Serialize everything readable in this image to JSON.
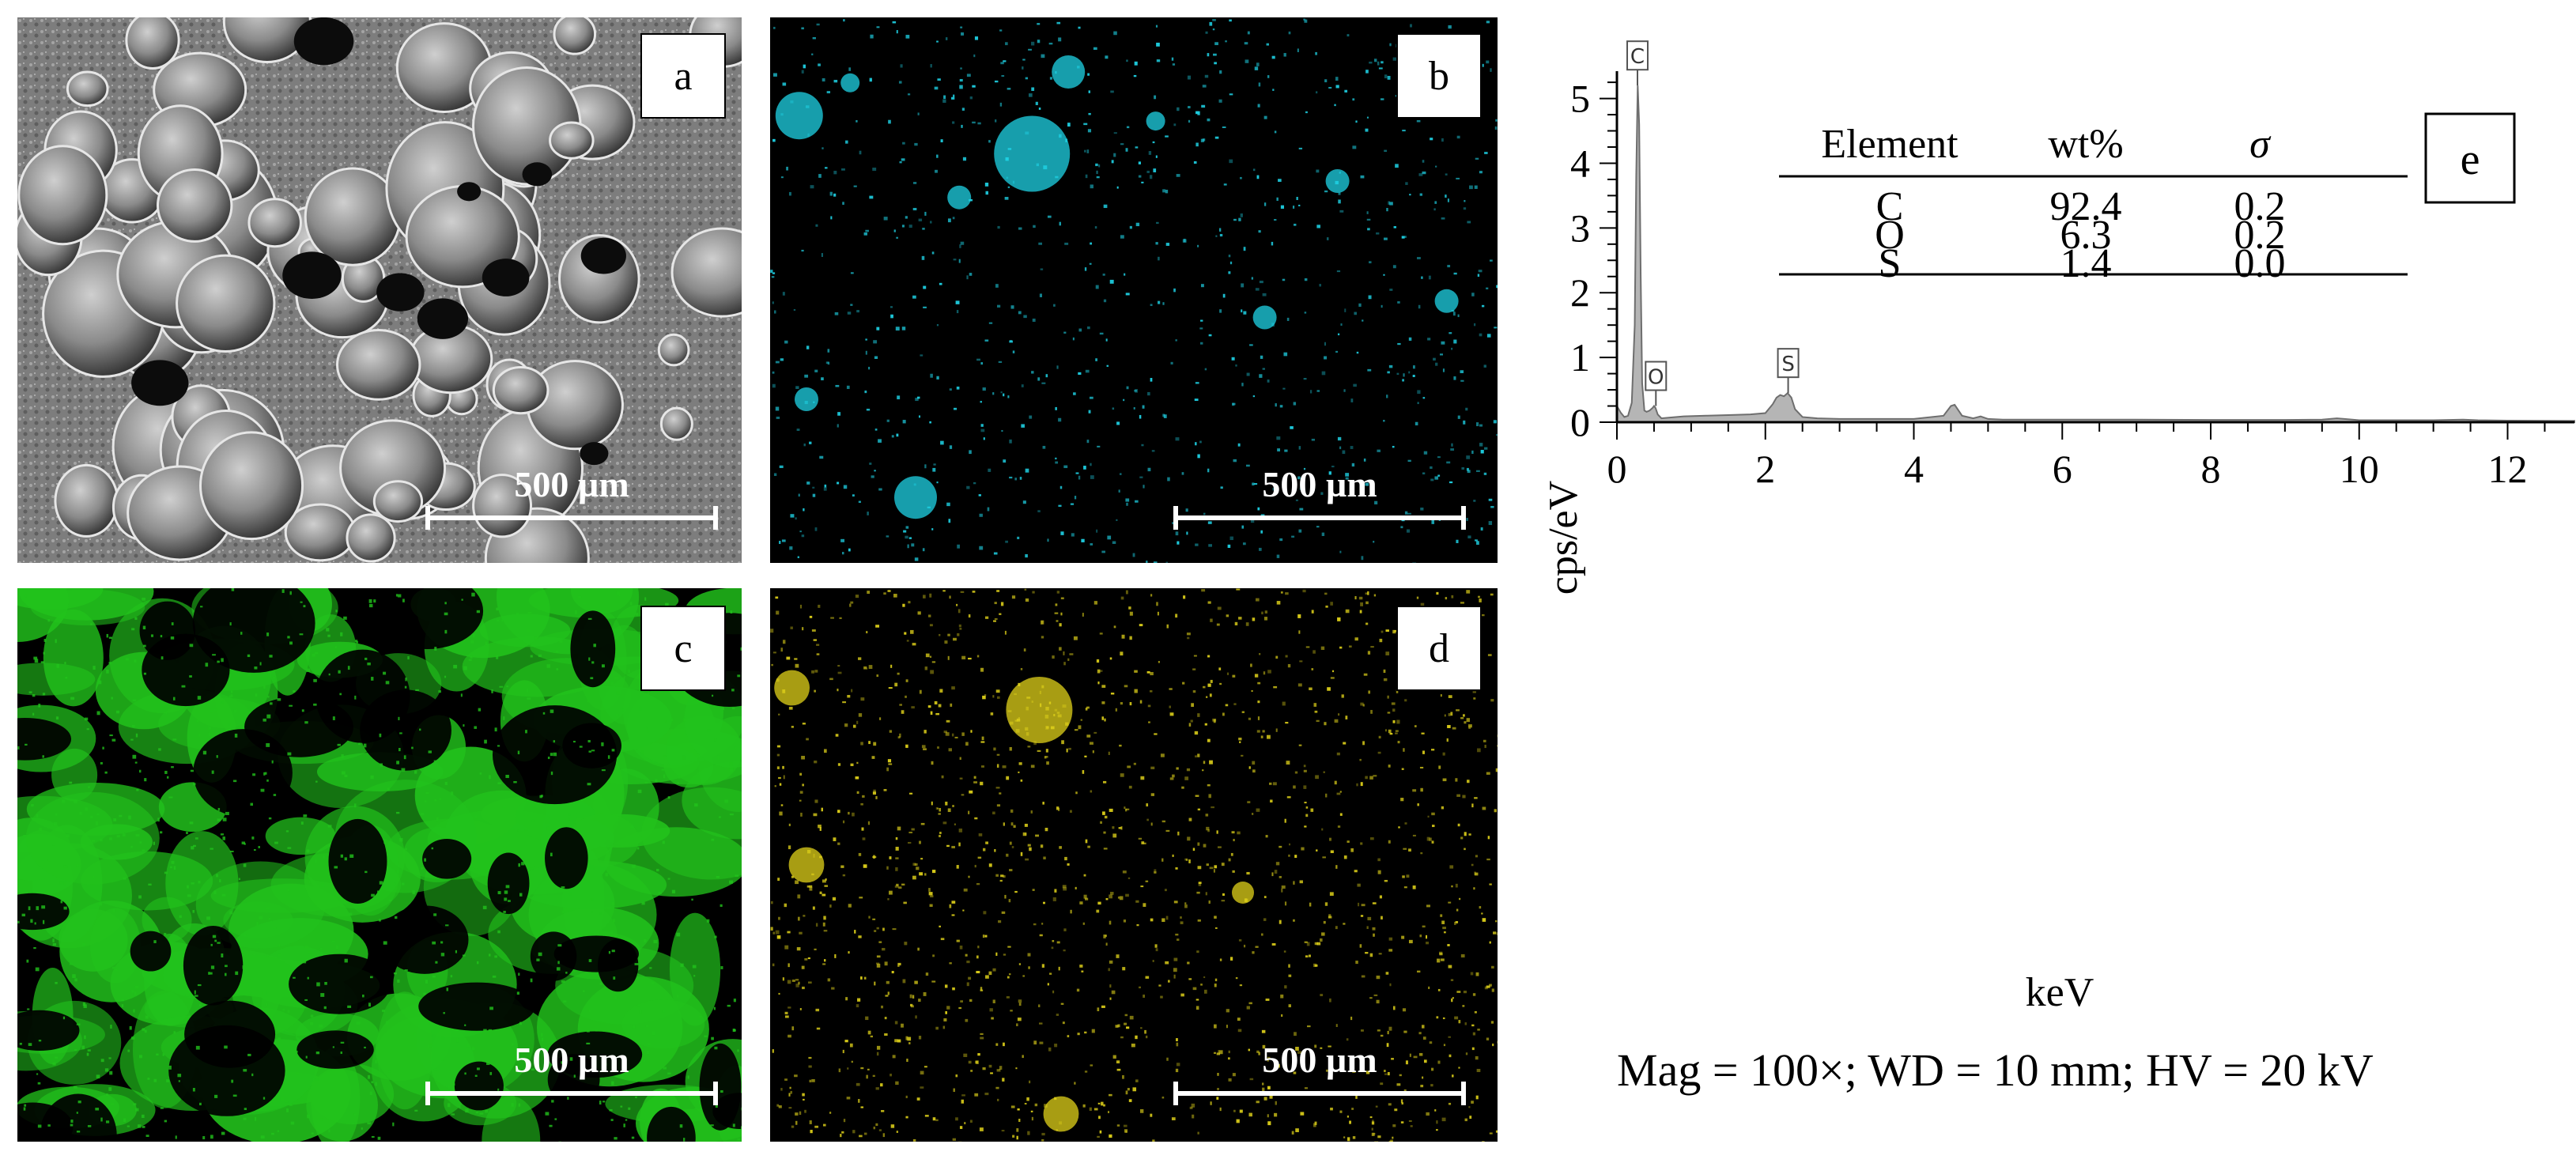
{
  "panels": {
    "a": {
      "letter": "a",
      "scale_bar": "500 µm",
      "map_color": "#8a8a8a"
    },
    "b": {
      "letter": "b",
      "scale_bar": "500 µm",
      "map_color": "#1fd3e6"
    },
    "c": {
      "letter": "c",
      "scale_bar": "500 µm",
      "map_color": "#22c21c"
    },
    "d": {
      "letter": "d",
      "scale_bar": "500 µm",
      "map_color": "#e0d21a"
    }
  },
  "chart_data": {
    "type": "area",
    "panel_letter": "e",
    "xlabel": "keV",
    "ylabel": "cps/eV",
    "xlim": [
      0,
      12.9
    ],
    "ylim": [
      0,
      5.3
    ],
    "xticks": [
      0,
      2,
      4,
      6,
      8,
      10,
      12
    ],
    "yticks": [
      0,
      1,
      2,
      3,
      4,
      5
    ],
    "fill_color": "#b5b5b5",
    "series": [
      {
        "x": [
          0,
          0.05,
          0.1,
          0.15,
          0.2,
          0.24,
          0.26,
          0.28,
          0.3,
          0.32,
          0.34,
          0.37,
          0.4,
          0.44,
          0.48,
          0.5,
          0.52,
          0.55,
          0.6,
          0.7,
          0.9,
          1.2,
          1.5,
          1.8,
          2.0,
          2.1,
          2.15,
          2.2,
          2.25,
          2.3,
          2.35,
          2.4,
          2.5,
          2.7,
          3.0,
          3.5,
          4.0,
          4.4,
          4.5,
          4.55,
          4.65,
          4.8,
          4.9,
          5.0,
          5.2,
          6.0,
          7.0,
          8.0,
          9.0,
          9.5,
          9.7,
          9.8,
          10.0,
          11.0,
          11.4,
          11.6,
          12.0,
          12.9
        ],
        "y": [
          0.25,
          0.15,
          0.08,
          0.1,
          0.3,
          1.5,
          3.8,
          5.2,
          4.6,
          2.3,
          0.6,
          0.18,
          0.16,
          0.18,
          0.22,
          0.25,
          0.22,
          0.12,
          0.06,
          0.07,
          0.09,
          0.1,
          0.11,
          0.12,
          0.14,
          0.28,
          0.38,
          0.42,
          0.4,
          0.45,
          0.38,
          0.2,
          0.08,
          0.06,
          0.05,
          0.05,
          0.05,
          0.1,
          0.25,
          0.27,
          0.1,
          0.06,
          0.09,
          0.05,
          0.04,
          0.04,
          0.04,
          0.035,
          0.035,
          0.04,
          0.06,
          0.05,
          0.03,
          0.03,
          0.04,
          0.03,
          0.025,
          0.02
        ]
      }
    ],
    "peak_labels": [
      {
        "label": "C",
        "x": 0.277,
        "y": 5.2
      },
      {
        "label": "O",
        "x": 0.525,
        "y": 0.25
      },
      {
        "label": "S",
        "x": 2.307,
        "y": 0.45
      }
    ],
    "table": {
      "headers": [
        "Element",
        "wt%",
        "σ"
      ],
      "rows": [
        [
          "C",
          "92.4",
          "0.2"
        ],
        [
          "O",
          "6.3",
          "0.2"
        ],
        [
          "S",
          "1.4",
          "0.0"
        ]
      ]
    }
  },
  "caption": "Mag = 100×; WD = 10 mm; HV = 20 kV"
}
